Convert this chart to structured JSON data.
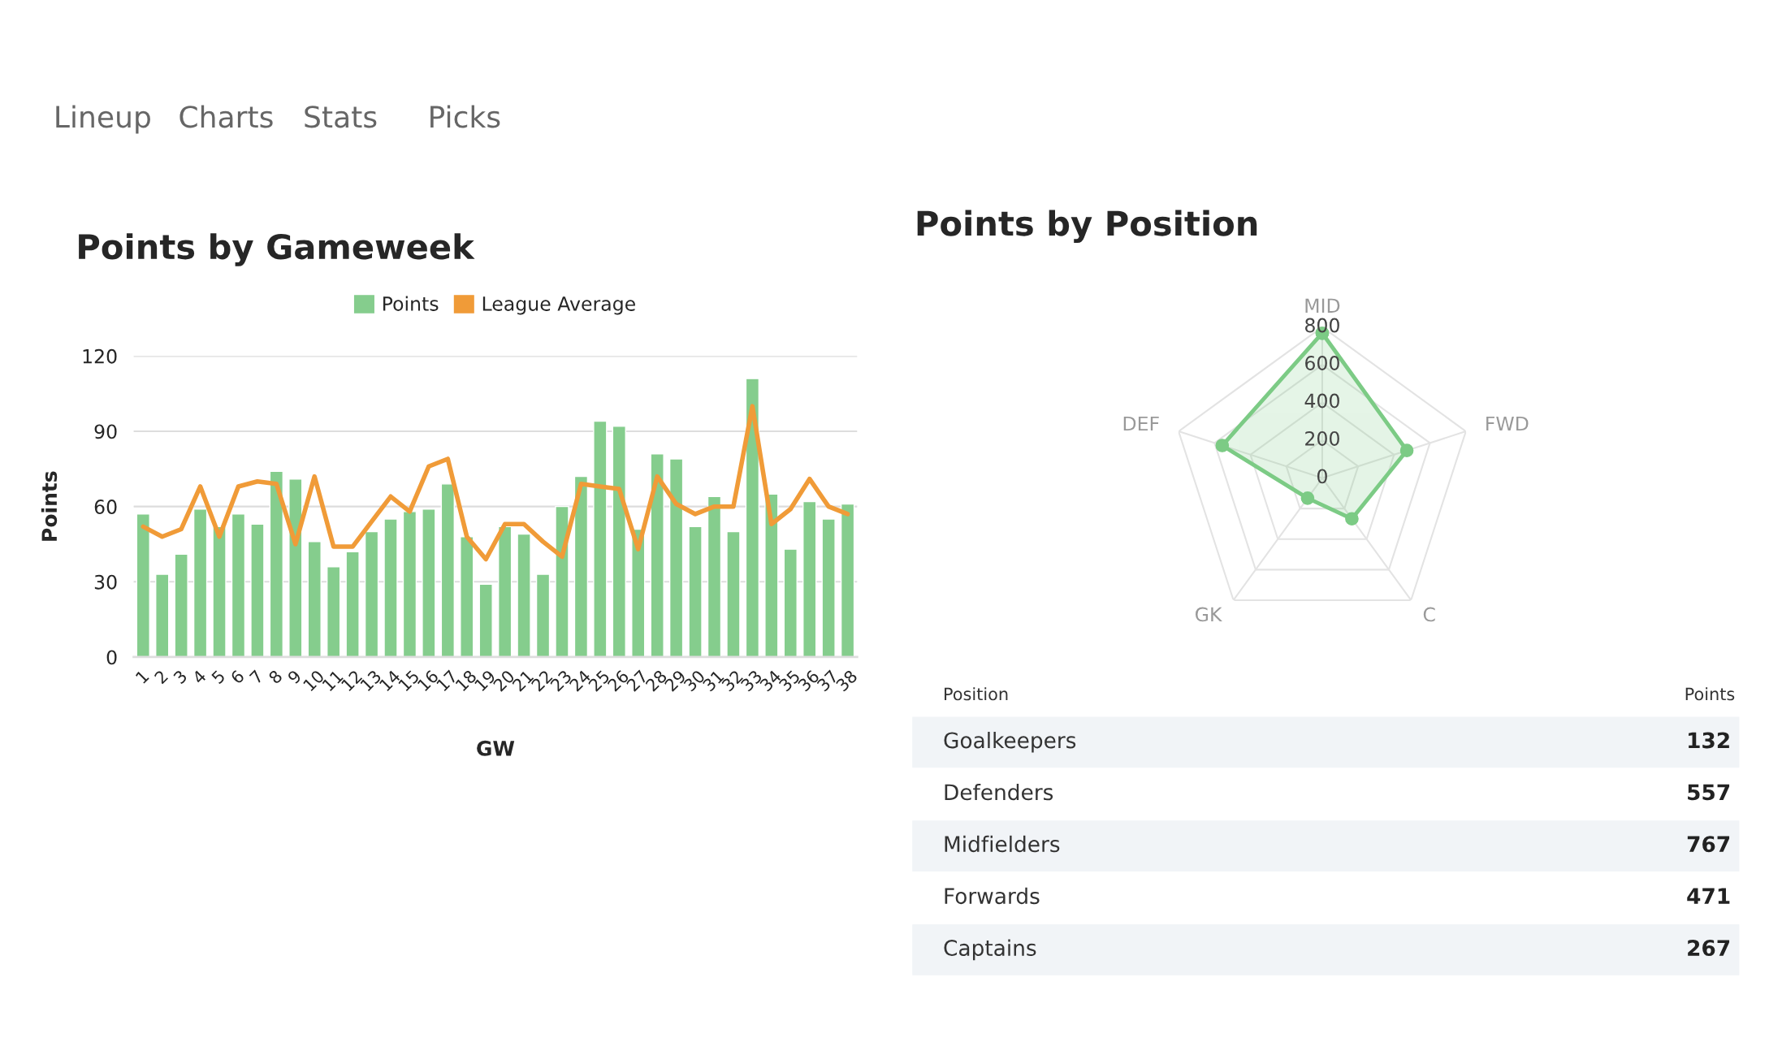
{
  "chart_data": [
    {
      "type": "bar",
      "title": "Points by Gameweek",
      "xlabel": "GW",
      "ylabel": "Points",
      "annotations": [
        "Lineup",
        "Charts",
        "Stats",
        "Picks"
      ],
      "categories": [
        "1",
        "2",
        "3",
        "4",
        "5",
        "6",
        "7",
        "8",
        "9",
        "10",
        "11",
        "12",
        "13",
        "14",
        "15",
        "16",
        "17",
        "18",
        "19",
        "20",
        "21",
        "22",
        "23",
        "24",
        "25",
        "26",
        "27",
        "28",
        "29",
        "30",
        "31",
        "32",
        "33",
        "34",
        "35",
        "36",
        "37",
        "38"
      ],
      "series": [
        {
          "name": "Points",
          "type": "bar",
          "color": "#85cd8d",
          "values": [
            57,
            33,
            41,
            59,
            52,
            57,
            53,
            74,
            71,
            46,
            36,
            42,
            50,
            55,
            58,
            59,
            69,
            48,
            29,
            52,
            49,
            33,
            60,
            72,
            94,
            92,
            51,
            81,
            79,
            52,
            64,
            50,
            111,
            65,
            43,
            62,
            55,
            61
          ]
        },
        {
          "name": "League Average",
          "type": "line",
          "color": "#f09b38",
          "values": [
            52,
            48,
            51,
            68,
            48,
            68,
            70,
            69,
            45,
            72,
            44,
            44,
            54,
            64,
            58,
            76,
            79,
            48,
            39,
            53,
            53,
            46,
            40,
            69,
            68,
            67,
            43,
            72,
            61,
            57,
            60,
            60,
            100,
            53,
            59,
            71,
            60,
            57
          ]
        }
      ],
      "ylim": [
        0,
        120
      ],
      "yticks": [
        0,
        30,
        60,
        90,
        120
      ],
      "grid": "y",
      "legend": "top",
      "marker": "none",
      "line_style": "solid"
    },
    {
      "type": "radar",
      "title": "Points by Position",
      "categories": [
        "MID",
        "FWD",
        "C",
        "GK",
        "DEF"
      ],
      "series": [
        {
          "color": "#7ccb85",
          "values": [
            767,
            471,
            267,
            132,
            557
          ]
        }
      ],
      "ylim": [
        0,
        800
      ],
      "yticks": [
        0,
        200,
        400,
        600,
        800
      ],
      "grid": true,
      "marker": "circle"
    },
    {
      "type": "other",
      "annotations": [
        "Position",
        "Points"
      ],
      "categories": [
        "Goalkeepers",
        "Defenders",
        "Midfielders",
        "Forwards",
        "Captains"
      ],
      "values": [
        132,
        557,
        767,
        471,
        267
      ],
      "data_labels": true
    }
  ]
}
